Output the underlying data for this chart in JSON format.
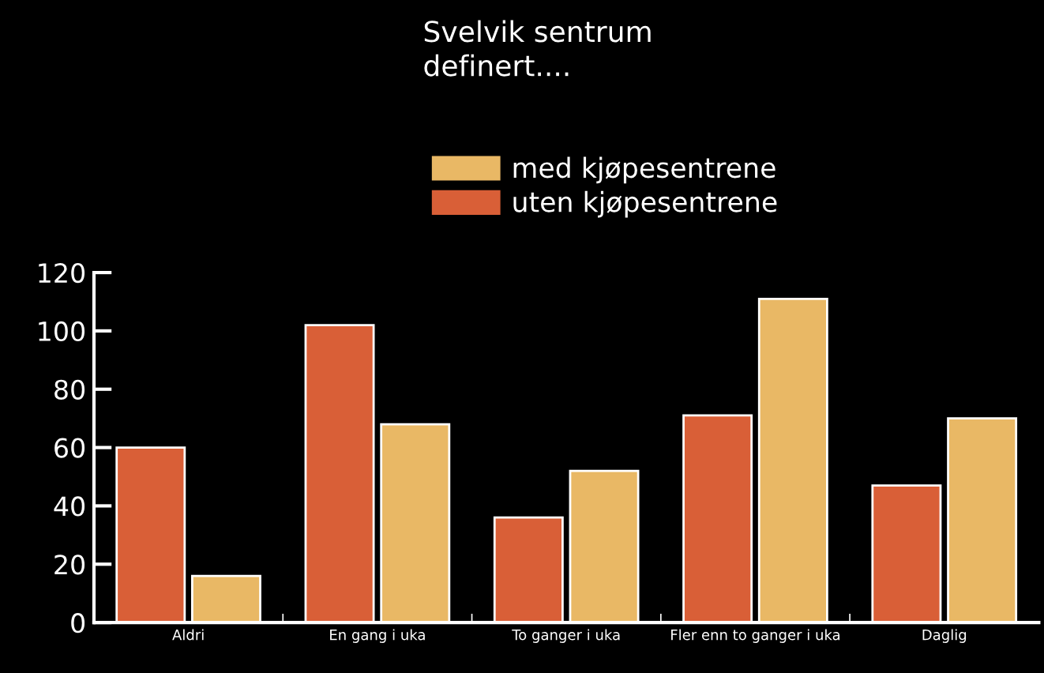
{
  "chart_data": {
    "type": "bar",
    "title": "Svelvik sentrum\ndefinert....",
    "categories": [
      "Aldri",
      "En gang i uka",
      "To ganger i uka",
      "Fler enn to ganger i uka",
      "Daglig"
    ],
    "series": [
      {
        "name": "uten kjøpesentrene",
        "color": "#d95f37",
        "values": [
          60,
          102,
          36,
          71,
          47
        ]
      },
      {
        "name": "med kjøpesentrene",
        "color": "#e9b865",
        "values": [
          16,
          68,
          52,
          111,
          70
        ]
      }
    ],
    "ylim": [
      0,
      120
    ],
    "yticks": [
      0,
      20,
      40,
      60,
      80,
      100,
      120
    ],
    "grid": false,
    "legend": "top"
  }
}
